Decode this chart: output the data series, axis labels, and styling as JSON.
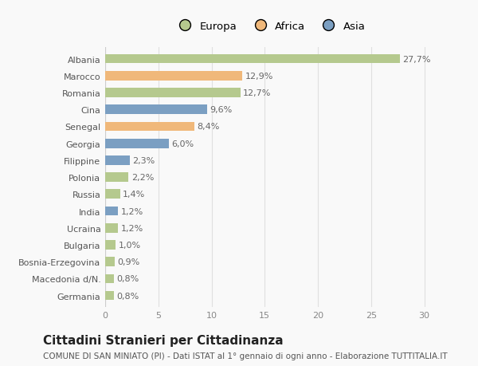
{
  "categories": [
    "Albania",
    "Marocco",
    "Romania",
    "Cina",
    "Senegal",
    "Georgia",
    "Filippine",
    "Polonia",
    "Russia",
    "India",
    "Ucraina",
    "Bulgaria",
    "Bosnia-Erzegovina",
    "Macedonia d/N.",
    "Germania"
  ],
  "values": [
    27.7,
    12.9,
    12.7,
    9.6,
    8.4,
    6.0,
    2.3,
    2.2,
    1.4,
    1.2,
    1.2,
    1.0,
    0.9,
    0.8,
    0.8
  ],
  "labels": [
    "27,7%",
    "12,9%",
    "12,7%",
    "9,6%",
    "8,4%",
    "6,0%",
    "2,3%",
    "2,2%",
    "1,4%",
    "1,2%",
    "1,2%",
    "1,0%",
    "0,9%",
    "0,8%",
    "0,8%"
  ],
  "continent": [
    "Europa",
    "Africa",
    "Europa",
    "Asia",
    "Africa",
    "Asia",
    "Asia",
    "Europa",
    "Europa",
    "Asia",
    "Europa",
    "Europa",
    "Europa",
    "Europa",
    "Europa"
  ],
  "colors": {
    "Europa": "#b5c98e",
    "Africa": "#f0b87a",
    "Asia": "#7b9fc2"
  },
  "legend_labels": [
    "Europa",
    "Africa",
    "Asia"
  ],
  "legend_colors": [
    "#b5c98e",
    "#f0b87a",
    "#7b9fc2"
  ],
  "xlim": [
    0,
    31
  ],
  "xticks": [
    0,
    5,
    10,
    15,
    20,
    25,
    30
  ],
  "title": "Cittadini Stranieri per Cittadinanza",
  "subtitle": "COMUNE DI SAN MINIATO (PI) - Dati ISTAT al 1° gennaio di ogni anno - Elaborazione TUTTITALIA.IT",
  "bg_color": "#f9f9f9",
  "grid_color": "#e0e0e0",
  "bar_height": 0.55,
  "title_fontsize": 11,
  "subtitle_fontsize": 7.5,
  "label_fontsize": 8,
  "tick_fontsize": 8
}
